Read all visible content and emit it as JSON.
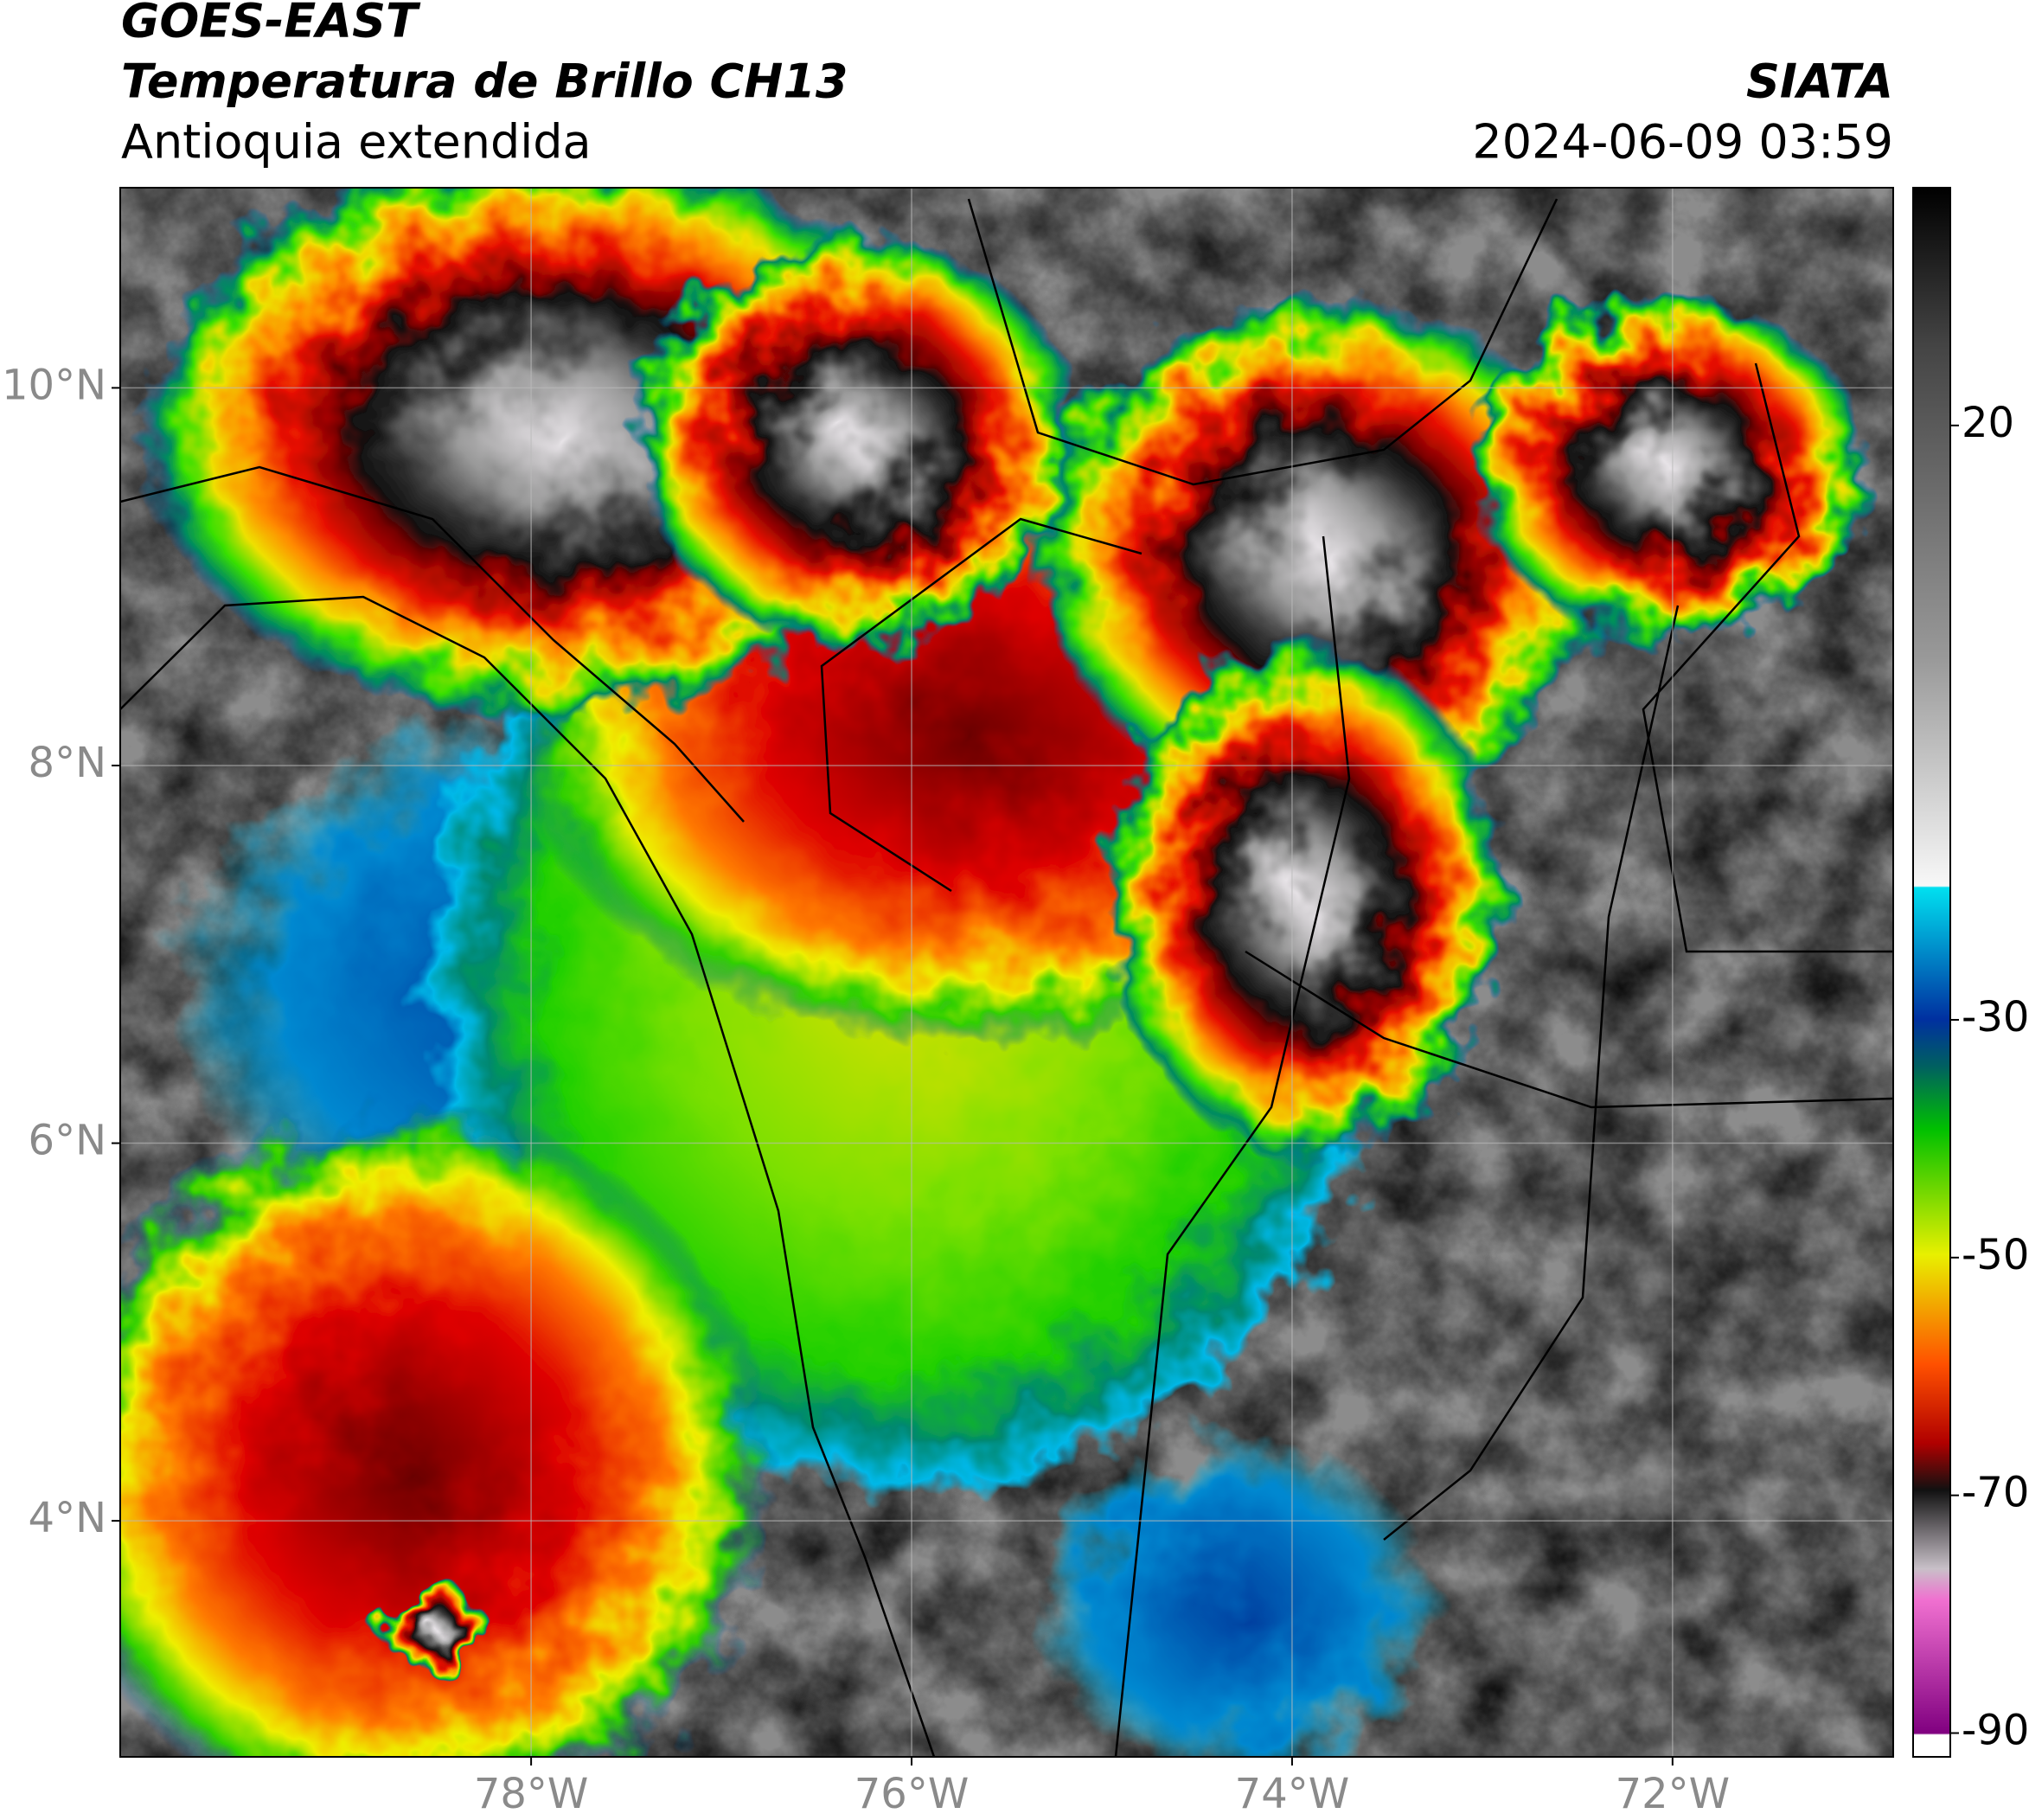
{
  "header": {
    "title": "GOES-EAST",
    "subtitle": "Temperatura de Brillo CH13",
    "region": "Antioquia extendida",
    "source": "SIATA",
    "datetime": "2024-06-09 03:59"
  },
  "map": {
    "xlim": [
      -80.16,
      -70.84
    ],
    "ylim": [
      2.75,
      11.06
    ],
    "xticks": [
      {
        "value": -78,
        "label": "78°W"
      },
      {
        "value": -76,
        "label": "76°W"
      },
      {
        "value": -74,
        "label": "74°W"
      },
      {
        "value": -72,
        "label": "72°W"
      }
    ],
    "yticks": [
      {
        "value": 4,
        "label": "4°N"
      },
      {
        "value": 6,
        "label": "6°N"
      },
      {
        "value": 8,
        "label": "8°N"
      },
      {
        "value": 10,
        "label": "10°N"
      }
    ],
    "grid": true
  },
  "colorbar": {
    "lim": [
      -92,
      40
    ],
    "ticks": [
      -90,
      -70,
      -50,
      -30,
      20
    ]
  }
}
